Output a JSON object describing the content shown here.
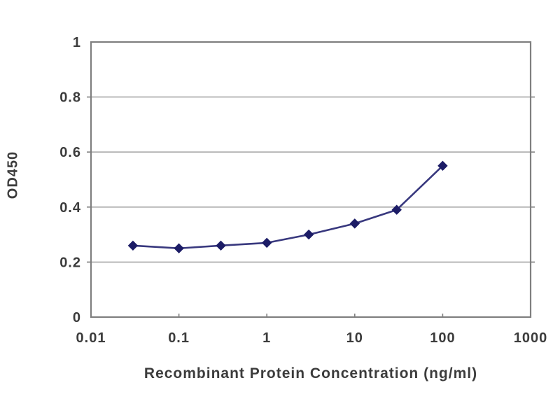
{
  "page": {
    "background_color": "#ffffff",
    "description": "ELISA standard curve line chart"
  },
  "chart_data": {
    "type": "line",
    "title": "",
    "xlabel": "Recombinant Protein Concentration (ng/ml)",
    "ylabel": "OD450",
    "x_scale": "log",
    "y_scale": "linear",
    "xlim": [
      0.01,
      1000
    ],
    "ylim": [
      0,
      1
    ],
    "x": [
      0.03,
      0.1,
      0.3,
      1,
      3,
      10,
      30,
      100
    ],
    "y": [
      0.26,
      0.25,
      0.26,
      0.27,
      0.3,
      0.34,
      0.39,
      0.55
    ],
    "x_tick_values": [
      0.01,
      0.1,
      1,
      10,
      100,
      1000
    ],
    "x_tick_labels": [
      "0.01",
      "0.1",
      "1",
      "10",
      "100",
      "1000"
    ],
    "y_tick_values": [
      0,
      0.2,
      0.4,
      0.6,
      0.8,
      1
    ],
    "y_tick_labels": [
      "0",
      "0.2",
      "0.4",
      "0.6",
      "0.8",
      "1"
    ],
    "grid": "horizontal-only",
    "legend_position": "none",
    "marker": "diamond",
    "colors": {
      "line": "#38387e",
      "marker": "#1c1c66",
      "grid": "#a8a8a8",
      "border": "#7f7f7f",
      "text": "#3c3c3c"
    }
  }
}
